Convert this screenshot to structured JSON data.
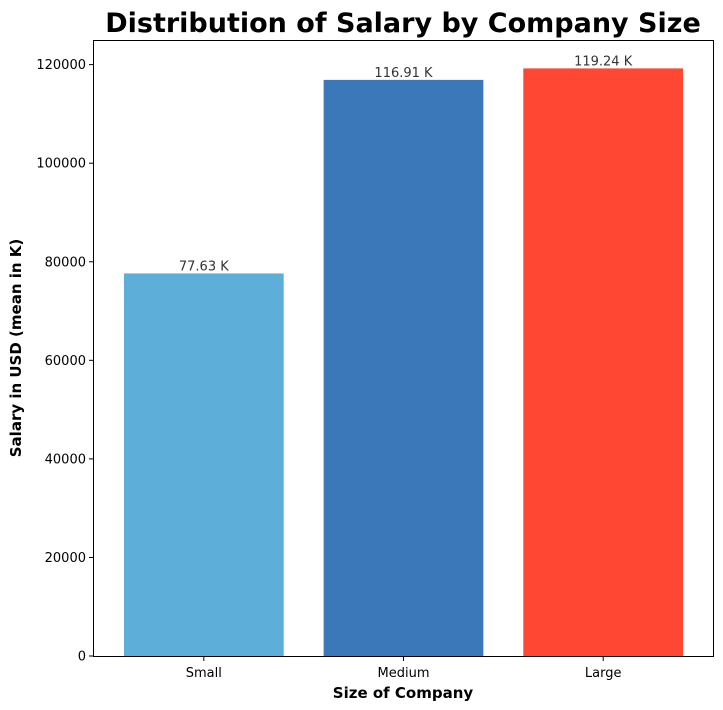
{
  "chart_data": {
    "type": "bar",
    "title": "Distribution of Salary by Company Size",
    "xlabel": "Size of Company",
    "ylabel": "Salary in USD (mean in K)",
    "categories": [
      "Small",
      "Medium",
      "Large"
    ],
    "values": [
      77630,
      116910,
      119240
    ],
    "data_labels": [
      "77.63 K",
      "116.91 K",
      "119.24 K"
    ],
    "colors": [
      "#5dafd9",
      "#3a78b9",
      "#ff4734"
    ],
    "ylim": [
      0,
      125000
    ],
    "yticks": [
      0,
      20000,
      40000,
      60000,
      80000,
      100000,
      120000
    ],
    "ytick_labels": [
      "0",
      "20000",
      "40000",
      "60000",
      "80000",
      "100000",
      "120000"
    ],
    "grid": false,
    "legend": "none"
  }
}
